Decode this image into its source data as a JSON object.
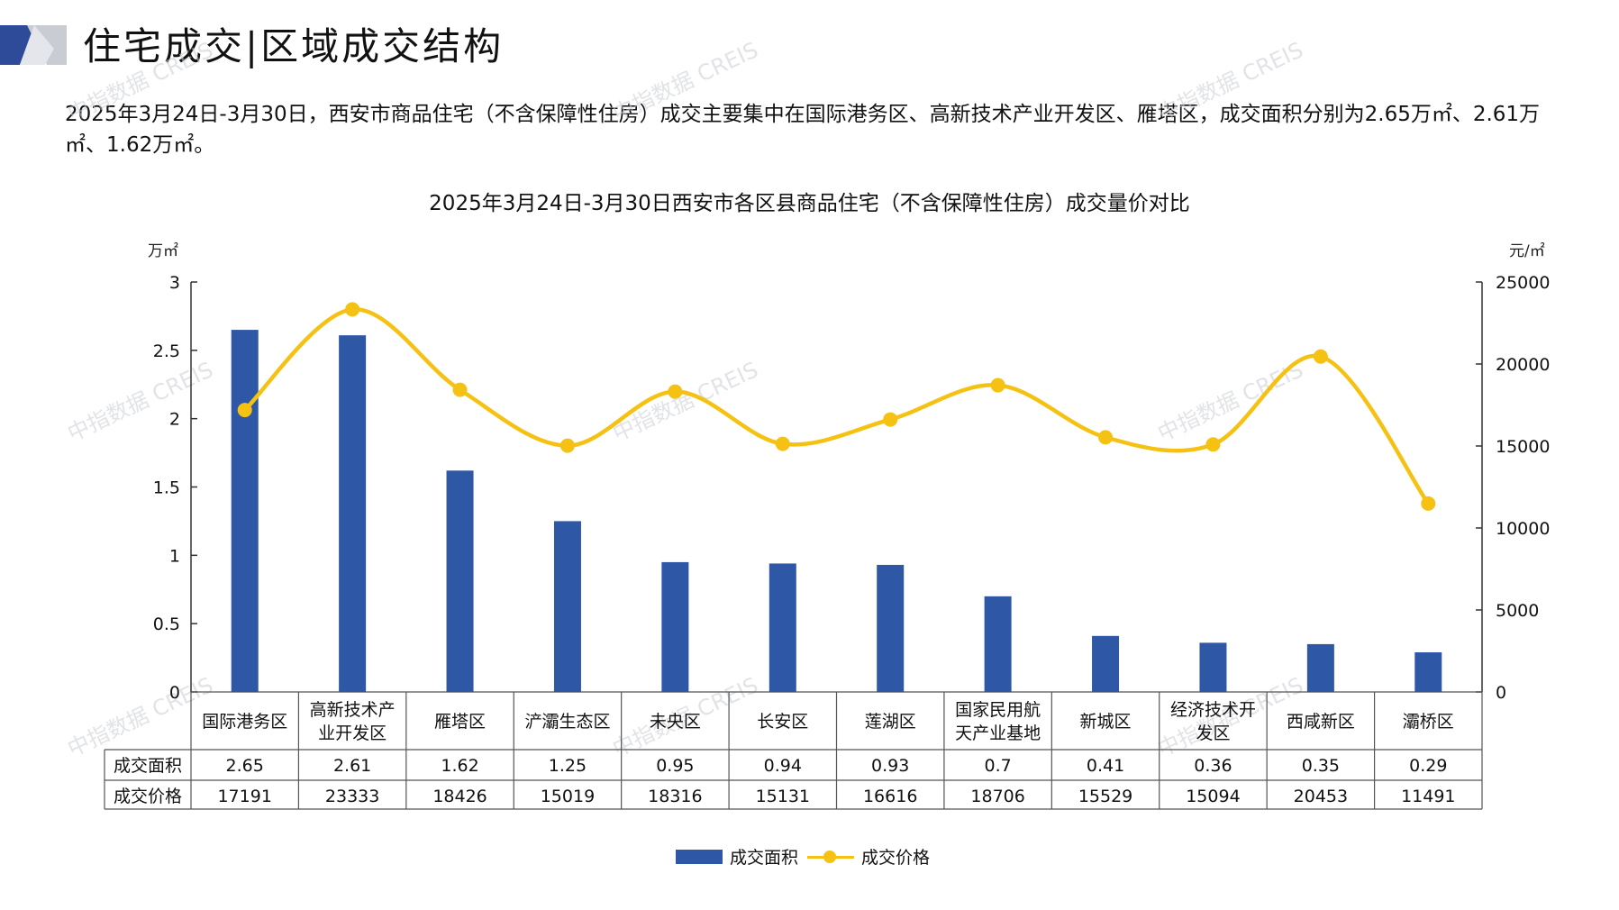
{
  "header": {
    "title": "住宅成交|区域成交结构",
    "summary": "2025年3月24日-3月30日，西安市商品住宅（不含保障性住房）成交主要集中在国际港务区、高新技术产业开发区、雁塔区，成交面积分别为2.65万㎡、2.61万㎡、1.62万㎡。",
    "watermark": "中指数据 CREIS"
  },
  "colors": {
    "bar": "#2E58A6",
    "line": "#F5C213",
    "logo_dark": "#2E4B9A",
    "logo_light": "#C9CCD3"
  },
  "chart_data": {
    "type": "bar",
    "title": "2025年3月24日-3月30日西安市各区县商品住宅（不含保障性住房）成交量价对比",
    "y_left_label": "万㎡",
    "y_right_label": "元/㎡",
    "y_left_range": [
      0,
      3
    ],
    "y_left_ticks": [
      "0",
      "0.5",
      "1",
      "1.5",
      "2",
      "2.5",
      "3"
    ],
    "y_right_range": [
      0,
      25000
    ],
    "y_right_ticks": [
      "0",
      "5000",
      "10000",
      "15000",
      "20000",
      "25000"
    ],
    "categories": [
      "国际港务区",
      "高新技术产业开发区",
      "雁塔区",
      "浐灞生态区",
      "未央区",
      "长安区",
      "莲湖区",
      "国家民用航天产业基地",
      "新城区",
      "经济技术开发区",
      "西咸新区",
      "灞桥区"
    ],
    "series": [
      {
        "name": "成交面积",
        "type": "bar",
        "axis": "left",
        "values": [
          2.65,
          2.61,
          1.62,
          1.25,
          0.95,
          0.94,
          0.93,
          0.7,
          0.41,
          0.36,
          0.35,
          0.29
        ],
        "labels": [
          "2.65",
          "2.61",
          "1.62",
          "1.25",
          "0.95",
          "0.94",
          "0.93",
          "0.7",
          "0.41",
          "0.36",
          "0.35",
          "0.29"
        ]
      },
      {
        "name": "成交价格",
        "type": "line",
        "axis": "right",
        "values": [
          17191,
          23333,
          18426,
          15019,
          18316,
          15131,
          16616,
          18706,
          15529,
          15094,
          20453,
          11491
        ],
        "labels": [
          "17191",
          "23333",
          "18426",
          "15019",
          "18316",
          "15131",
          "16616",
          "18706",
          "15529",
          "15094",
          "20453",
          "11491"
        ]
      }
    ],
    "legend_position": "bottom-center",
    "data_table": true
  }
}
